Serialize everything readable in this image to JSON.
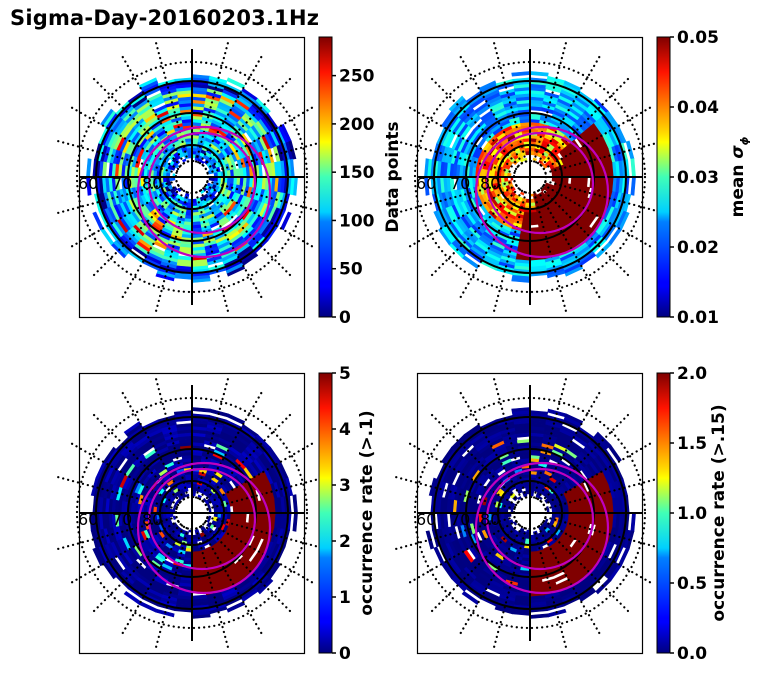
{
  "figure": {
    "suptitle": "Sigma-Day-20160203.1Hz"
  },
  "chart_data": [
    {
      "type": "heatmap",
      "projection": "polar (magnetic latitude / MLT)",
      "title": "",
      "position": "top-left",
      "colormap": "jet",
      "colorbar": {
        "label": "Data points",
        "range": [
          0,
          290
        ],
        "ticks": [
          0,
          50,
          100,
          150,
          200,
          250
        ],
        "tick_labels": [
          "0",
          "50",
          "100",
          "150",
          "200",
          "250"
        ]
      },
      "latitude_labels": [
        "60",
        "70",
        "80"
      ],
      "solid_latitude_circles": [
        60,
        70,
        80
      ],
      "pattern": {
        "description": "Mostly blue/cyan/green with scattered yellow-orange-red cells around 65-75 deg",
        "mean_norm": 0.35,
        "spread": 0.22,
        "dayside_boost": 0.0
      }
    },
    {
      "type": "heatmap",
      "projection": "polar (magnetic latitude / MLT)",
      "title": "",
      "position": "top-right",
      "colormap": "jet",
      "colorbar": {
        "label": "mean σ_φ",
        "range": [
          0.01,
          0.05
        ],
        "ticks": [
          0.01,
          0.02,
          0.03,
          0.04,
          0.05
        ],
        "tick_labels": [
          "0.01",
          "0.02",
          "0.03",
          "0.04",
          "0.05"
        ]
      },
      "latitude_labels": [
        "60",
        "70",
        "80"
      ],
      "solid_latitude_circles": [
        60,
        70,
        80
      ],
      "pattern": {
        "description": "Cyan/blue at low latitudes on left, dark red saturated on right (dawn) side and inner ring",
        "mean_norm": 0.4,
        "spread": 0.2,
        "dayside_boost": 0.6
      }
    },
    {
      "type": "heatmap",
      "projection": "polar (magnetic latitude / MLT)",
      "title": "",
      "position": "bottom-left",
      "colormap": "jet",
      "colorbar": {
        "label": "occurrence rate (>.1)",
        "range": [
          0,
          5
        ],
        "ticks": [
          0,
          1,
          2,
          3,
          4,
          5
        ],
        "tick_labels": [
          "0",
          "1",
          "2",
          "3",
          "4",
          "5"
        ]
      },
      "latitude_labels": [
        "60",
        "70",
        "80"
      ],
      "solid_latitude_circles": [
        60,
        70,
        80
      ],
      "pattern": {
        "description": "Mostly dark blue (0), dark red (saturated) band on right side 65-75 deg, scattered colored cells",
        "mean_norm": 0.02,
        "spread": 0.05,
        "dayside_boost": 1.0
      }
    },
    {
      "type": "heatmap",
      "projection": "polar (magnetic latitude / MLT)",
      "title": "",
      "position": "bottom-right",
      "colormap": "jet",
      "colorbar": {
        "label": "occurrence rate (>.15)",
        "range": [
          0.0,
          2.0
        ],
        "ticks": [
          0.0,
          0.5,
          1.0,
          1.5,
          2.0
        ],
        "tick_labels": [
          "0.0",
          "0.5",
          "1.0",
          "1.5",
          "2.0"
        ]
      },
      "latitude_labels": [
        "60",
        "70",
        "80"
      ],
      "solid_latitude_circles": [
        60,
        70,
        80
      ],
      "pattern": {
        "description": "Mostly dark blue (0), dark red band on lower-right side, sparse orange/yellow streaks",
        "mean_norm": 0.01,
        "spread": 0.03,
        "dayside_boost": 0.95
      }
    }
  ]
}
